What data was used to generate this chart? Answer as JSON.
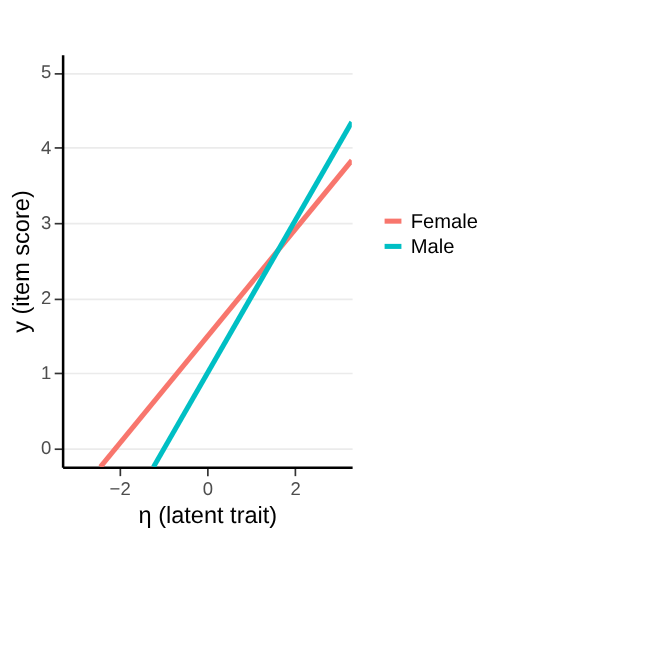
{
  "chart_data": {
    "type": "line",
    "xlabel": "η (latent trait)",
    "ylabel": "y (item score)",
    "xlim": [
      -3.3,
      3.3
    ],
    "ylim": [
      -0.25,
      5.24
    ],
    "xticks": [
      -2,
      0,
      2
    ],
    "yticks": [
      0,
      1,
      2,
      3,
      4,
      5
    ],
    "grid": "y",
    "legend": "right",
    "marker": "none",
    "line_style": "solid",
    "series": [
      {
        "name": "Female",
        "color": "#f8766d",
        "x": [
          -2.43,
          3.3
        ],
        "values": [
          -0.25,
          3.83
        ]
      },
      {
        "name": "Male",
        "color": "#00bfc4",
        "x": [
          -1.22,
          3.3
        ],
        "values": [
          -0.25,
          4.34
        ]
      }
    ]
  }
}
